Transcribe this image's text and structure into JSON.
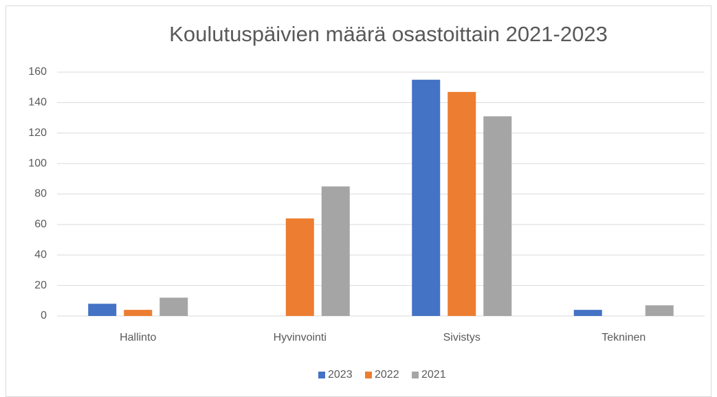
{
  "chart_data": {
    "type": "bar",
    "title": "Koulutuspäivien määrä osastoittain 2021-2023",
    "categories": [
      "Hallinto",
      "Hyvinvointi",
      "Sivistys",
      "Tekninen"
    ],
    "series": [
      {
        "name": "2023",
        "color": "#4472c4",
        "values": [
          8,
          0,
          155,
          4
        ]
      },
      {
        "name": "2022",
        "color": "#ed7d31",
        "values": [
          4,
          64,
          147,
          0
        ]
      },
      {
        "name": "2021",
        "color": "#a5a5a5",
        "values": [
          12,
          85,
          131,
          7
        ]
      }
    ],
    "ylim": [
      0,
      160
    ],
    "yticks": [
      0,
      20,
      40,
      60,
      80,
      100,
      120,
      140,
      160
    ],
    "grid": true,
    "legend": "bottom"
  }
}
